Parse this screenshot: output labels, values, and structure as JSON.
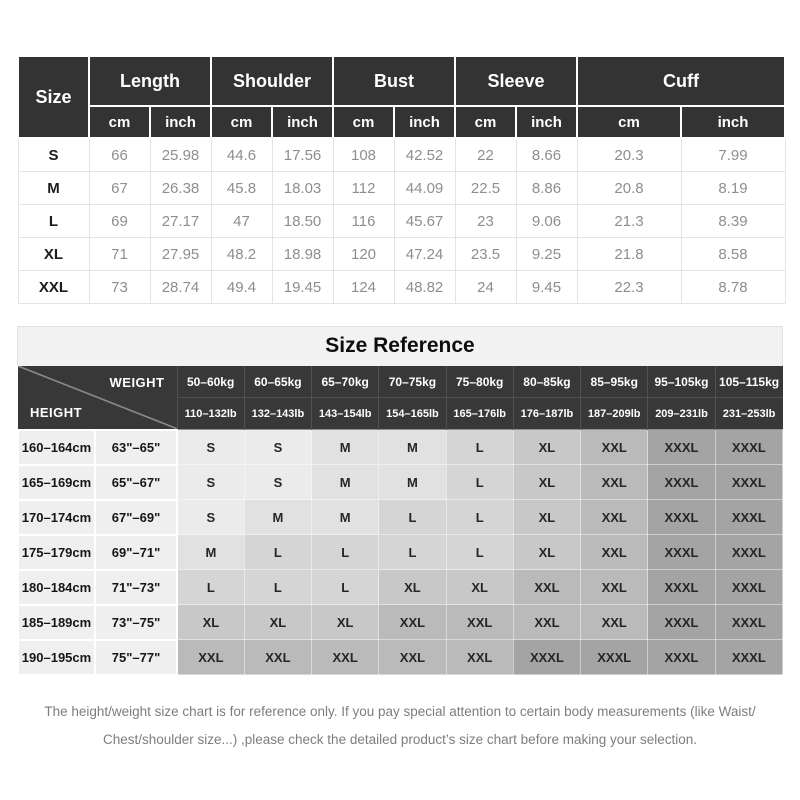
{
  "size_table": {
    "corner_label": "Size",
    "groups": [
      "Length",
      "Shoulder",
      "Bust",
      "Sleeve",
      "Cuff"
    ],
    "units": [
      "cm",
      "inch"
    ],
    "rows": [
      [
        "S",
        "66",
        "25.98",
        "44.6",
        "17.56",
        "108",
        "42.52",
        "22",
        "8.66",
        "20.3",
        "7.99"
      ],
      [
        "M",
        "67",
        "26.38",
        "45.8",
        "18.03",
        "112",
        "44.09",
        "22.5",
        "8.86",
        "20.8",
        "8.19"
      ],
      [
        "L",
        "69",
        "27.17",
        "47",
        "18.50",
        "116",
        "45.67",
        "23",
        "9.06",
        "21.3",
        "8.39"
      ],
      [
        "XL",
        "71",
        "27.95",
        "48.2",
        "18.98",
        "120",
        "47.24",
        "23.5",
        "9.25",
        "21.8",
        "8.58"
      ],
      [
        "XXL",
        "73",
        "28.74",
        "49.4",
        "19.45",
        "124",
        "48.82",
        "24",
        "9.45",
        "22.3",
        "8.78"
      ]
    ]
  },
  "size_reference": {
    "title": "Size Reference",
    "corner": {
      "top_label": "WEIGHT",
      "bottom_label": "HEIGHT"
    },
    "weight_kg": [
      "50–60kg",
      "60–65kg",
      "65–70kg",
      "70–75kg",
      "75–80kg",
      "80–85kg",
      "85–95kg",
      "95–105kg",
      "105–115kg"
    ],
    "weight_lb": [
      "110–132lb",
      "132–143lb",
      "143–154lb",
      "154–165lb",
      "165–176lb",
      "176–187lb",
      "187–209lb",
      "209–231lb",
      "231–253lb"
    ],
    "rows": [
      {
        "height_cm": "160–164cm",
        "height_in": "63\"–65\"",
        "sizes": [
          "S",
          "S",
          "M",
          "M",
          "L",
          "XL",
          "XXL",
          "XXXL",
          "XXXL"
        ]
      },
      {
        "height_cm": "165–169cm",
        "height_in": "65\"–67\"",
        "sizes": [
          "S",
          "S",
          "M",
          "M",
          "L",
          "XL",
          "XXL",
          "XXXL",
          "XXXL"
        ]
      },
      {
        "height_cm": "170–174cm",
        "height_in": "67\"–69\"",
        "sizes": [
          "S",
          "M",
          "M",
          "L",
          "L",
          "XL",
          "XXL",
          "XXXL",
          "XXXL"
        ]
      },
      {
        "height_cm": "175–179cm",
        "height_in": "69\"–71\"",
        "sizes": [
          "M",
          "L",
          "L",
          "L",
          "L",
          "XL",
          "XXL",
          "XXXL",
          "XXXL"
        ]
      },
      {
        "height_cm": "180–184cm",
        "height_in": "71\"–73\"",
        "sizes": [
          "L",
          "L",
          "L",
          "XL",
          "XL",
          "XXL",
          "XXL",
          "XXXL",
          "XXXL"
        ]
      },
      {
        "height_cm": "185–189cm",
        "height_in": "73\"–75\"",
        "sizes": [
          "XL",
          "XL",
          "XL",
          "XXL",
          "XXL",
          "XXL",
          "XXL",
          "XXXL",
          "XXXL"
        ]
      },
      {
        "height_cm": "190–195cm",
        "height_in": "75\"–77\"",
        "sizes": [
          "XXL",
          "XXL",
          "XXL",
          "XXL",
          "XXL",
          "XXXL",
          "XXXL",
          "XXXL",
          "XXXL"
        ]
      }
    ],
    "size_shades": {
      "S": "#ebebeb",
      "M": "#e1e1e1",
      "L": "#d5d5d5",
      "XL": "#c8c8c8",
      "XXL": "#bababa",
      "XXXL": "#a4a4a4"
    }
  },
  "footer": {
    "line1": "The height/weight size chart is for reference only. If you pay special attention to certain body measurements  (like Waist/",
    "line2": "Chest/shoulder size...)  ,please check the detailed product’s size chart before making your selection."
  },
  "colors": {
    "header_dark": "#333333",
    "header_text": "#ffffff",
    "value_text": "#8e8e8e",
    "title_band_bg": "#f2f2f2",
    "footer_text": "#7d7d7d"
  }
}
